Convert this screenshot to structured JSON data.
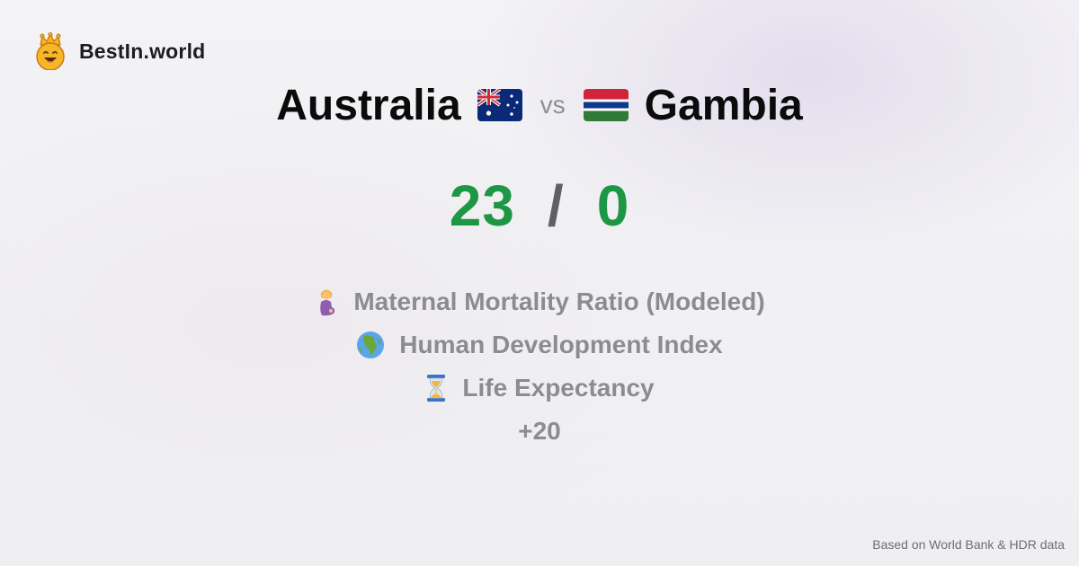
{
  "brand": {
    "name": "BestIn.world",
    "logo_icon": "crowned-smiley-icon"
  },
  "comparison": {
    "left_country": "Australia",
    "left_flag": "australia-flag-icon",
    "vs_label": "vs",
    "right_country": "Gambia",
    "right_flag": "gambia-flag-icon"
  },
  "score": {
    "left": "23",
    "separator": "/",
    "right": "0"
  },
  "metrics": [
    {
      "icon": "pregnant-woman-icon",
      "label": "Maternal Mortality Ratio (Modeled)"
    },
    {
      "icon": "globe-africa-icon",
      "label": "Human Development Index"
    },
    {
      "icon": "hourglass-icon",
      "label": "Life Expectancy"
    }
  ],
  "more_count": "+20",
  "footer": {
    "source": "Based on World Bank & HDR data"
  },
  "colors": {
    "score_green": "#1d9645",
    "muted_text": "#8c8c90"
  }
}
